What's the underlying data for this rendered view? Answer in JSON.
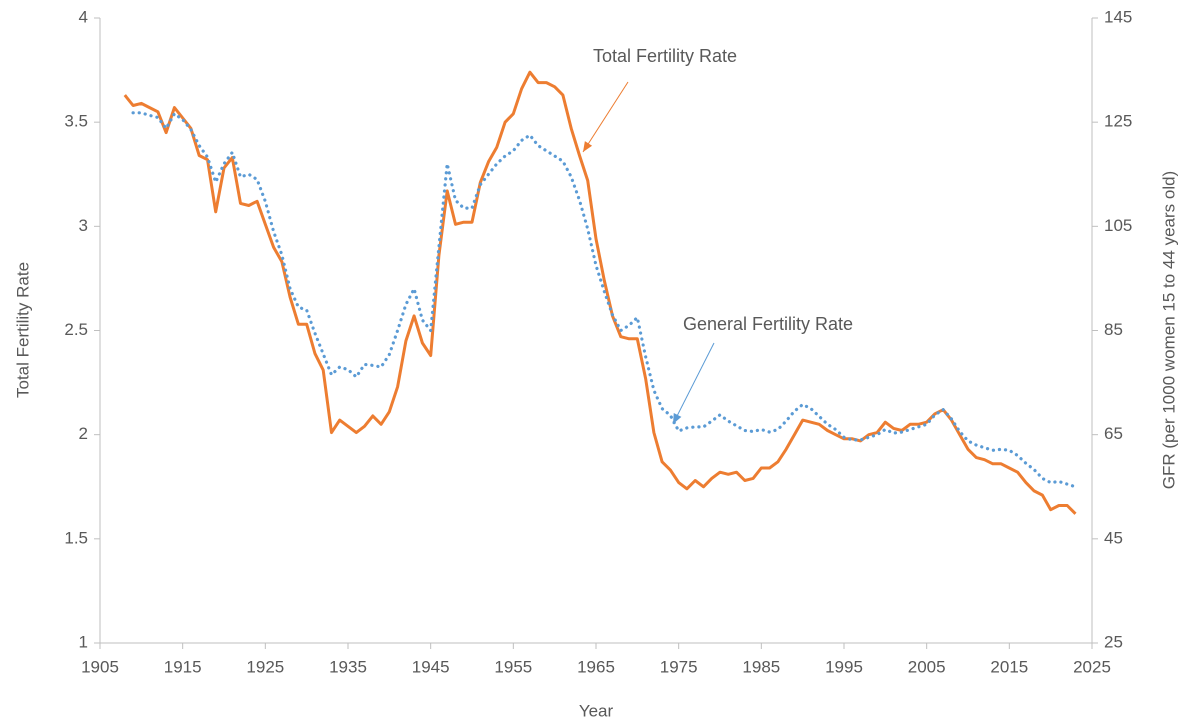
{
  "chart_data": {
    "type": "line",
    "x_label": "Year",
    "y_label": "Total Fertility Rate",
    "y2_label": "GFR (per 1000 women 15 to 44 years old)",
    "annotations": [
      "Total Fertility Rate",
      "General Fertility Rate"
    ],
    "x": [
      1908,
      1909,
      1910,
      1911,
      1912,
      1913,
      1914,
      1915,
      1916,
      1917,
      1918,
      1919,
      1920,
      1921,
      1922,
      1923,
      1924,
      1925,
      1926,
      1927,
      1928,
      1929,
      1930,
      1931,
      1932,
      1933,
      1934,
      1935,
      1936,
      1937,
      1938,
      1939,
      1940,
      1941,
      1942,
      1943,
      1944,
      1945,
      1946,
      1947,
      1948,
      1949,
      1950,
      1951,
      1952,
      1953,
      1954,
      1955,
      1956,
      1957,
      1958,
      1959,
      1960,
      1961,
      1962,
      1963,
      1964,
      1965,
      1966,
      1967,
      1968,
      1969,
      1970,
      1971,
      1972,
      1973,
      1974,
      1975,
      1976,
      1977,
      1978,
      1979,
      1980,
      1981,
      1982,
      1983,
      1984,
      1985,
      1986,
      1987,
      1988,
      1989,
      1990,
      1991,
      1992,
      1993,
      1994,
      1995,
      1996,
      1997,
      1998,
      1999,
      2000,
      2001,
      2002,
      2003,
      2004,
      2005,
      2006,
      2007,
      2008,
      2009,
      2010,
      2011,
      2012,
      2013,
      2014,
      2015,
      2016,
      2017,
      2018,
      2019,
      2020,
      2021,
      2022,
      2023
    ],
    "series": [
      {
        "name": "Total Fertility Rate",
        "color": "#ED7D31",
        "style": "solid",
        "axis": "y",
        "values": [
          3.63,
          3.58,
          3.59,
          3.57,
          3.55,
          3.45,
          3.57,
          3.52,
          3.47,
          3.34,
          3.32,
          3.07,
          3.28,
          3.33,
          3.11,
          3.1,
          3.12,
          3.01,
          2.9,
          2.83,
          2.66,
          2.53,
          2.53,
          2.39,
          2.31,
          2.01,
          2.07,
          2.04,
          2.01,
          2.04,
          2.09,
          2.05,
          2.11,
          2.23,
          2.45,
          2.57,
          2.44,
          2.38,
          2.86,
          3.17,
          3.01,
          3.02,
          3.02,
          3.21,
          3.31,
          3.38,
          3.5,
          3.54,
          3.66,
          3.74,
          3.69,
          3.69,
          3.67,
          3.63,
          3.47,
          3.34,
          3.22,
          2.94,
          2.74,
          2.57,
          2.47,
          2.46,
          2.46,
          2.27,
          2.01,
          1.87,
          1.83,
          1.77,
          1.74,
          1.78,
          1.75,
          1.79,
          1.82,
          1.81,
          1.82,
          1.78,
          1.79,
          1.84,
          1.84,
          1.87,
          1.93,
          2.0,
          2.07,
          2.06,
          2.05,
          2.02,
          2.0,
          1.98,
          1.98,
          1.97,
          2.0,
          2.01,
          2.06,
          2.03,
          2.02,
          2.05,
          2.05,
          2.06,
          2.1,
          2.12,
          2.07,
          2.0,
          1.93,
          1.89,
          1.88,
          1.86,
          1.86,
          1.84,
          1.82,
          1.77,
          1.73,
          1.71,
          1.64,
          1.66,
          1.66,
          1.62
        ]
      },
      {
        "name": "General Fertility Rate",
        "color": "#5B9BD5",
        "style": "dotted",
        "axis": "y2",
        "values": [
          null,
          126.8,
          126.8,
          126.3,
          125.9,
          123.8,
          126.6,
          125.5,
          123.6,
          120.5,
          118.3,
          113.5,
          117,
          119.2,
          114.5,
          115,
          114,
          109.8,
          104,
          99.5,
          93,
          89.5,
          88.9,
          84.5,
          80.5,
          76.5,
          78,
          77.5,
          76.1,
          78.5,
          78.3,
          78,
          80.4,
          85,
          90,
          93,
          87,
          85,
          101,
          117,
          110,
          108.5,
          108.5,
          113,
          115,
          117,
          118.5,
          119.5,
          121.5,
          122.5,
          120.5,
          119.5,
          118.5,
          117.5,
          114.5,
          110,
          104.5,
          97.5,
          92.5,
          88,
          85,
          86,
          87.5,
          80,
          73.5,
          70,
          68.7,
          65.7,
          66.3,
          66.5,
          66.5,
          67.6,
          68.8,
          67.6,
          66.7,
          65.8,
          65.6,
          66,
          65.5,
          66,
          67.6,
          69.5,
          70.8,
          70,
          68.5,
          67,
          66,
          64.5,
          64,
          64,
          64.5,
          65,
          66,
          65.3,
          65.5,
          66,
          66.5,
          67,
          68.8,
          69.8,
          68,
          65.6,
          63.8,
          63,
          62.5,
          62,
          62.2,
          62,
          61,
          59.5,
          58.3,
          56.6,
          55.8,
          56,
          55.5,
          55
        ]
      }
    ],
    "xlim": [
      1905,
      2025
    ],
    "xticks": [
      1905,
      1915,
      1925,
      1935,
      1945,
      1955,
      1965,
      1975,
      1985,
      1995,
      2005,
      2015,
      2025
    ],
    "ylim": [
      1,
      4
    ],
    "yticks": [
      1,
      1.5,
      2,
      2.5,
      3,
      3.5,
      4
    ],
    "y2lim": [
      25,
      145
    ],
    "y2ticks": [
      25,
      45,
      65,
      85,
      105,
      125,
      145
    ],
    "grid": false,
    "legend": false
  }
}
